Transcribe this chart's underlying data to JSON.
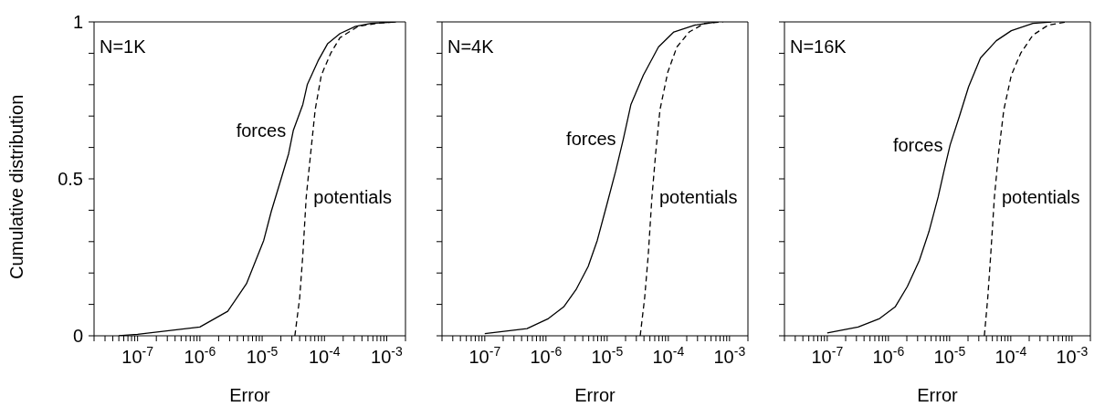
{
  "chart_data": [
    {
      "type": "line",
      "xlabel": "Error",
      "ylabel": "Cumulative distribution",
      "annotations": [
        "N=1K"
      ],
      "log": "x",
      "xlim": [
        2e-08,
        0.002
      ],
      "ylim": [
        0,
        1
      ],
      "xticks": [
        {
          "value": 2e-08,
          "label": null
        },
        {
          "value": 3e-08,
          "label": null
        },
        {
          "value": 4e-08,
          "label": null
        },
        {
          "value": 5e-08,
          "label": null
        },
        {
          "value": 6e-08,
          "label": null
        },
        {
          "value": 7e-08,
          "label": null
        },
        {
          "value": 8e-08,
          "label": null
        },
        {
          "value": 9e-08,
          "label": null
        },
        {
          "value": 1e-07,
          "label": "10$^{-7}$"
        },
        {
          "value": 2e-07,
          "label": null
        },
        {
          "value": 3e-07,
          "label": null
        },
        {
          "value": 4e-07,
          "label": null
        },
        {
          "value": 5e-07,
          "label": null
        },
        {
          "value": 6e-07,
          "label": null
        },
        {
          "value": 7e-07,
          "label": null
        },
        {
          "value": 8e-07,
          "label": null
        },
        {
          "value": 9e-07,
          "label": null
        },
        {
          "value": 1e-06,
          "label": "10$^{-6}$"
        },
        {
          "value": 2e-06,
          "label": null
        },
        {
          "value": 3e-06,
          "label": null
        },
        {
          "value": 4e-06,
          "label": null
        },
        {
          "value": 5e-06,
          "label": null
        },
        {
          "value": 6e-06,
          "label": null
        },
        {
          "value": 7e-06,
          "label": null
        },
        {
          "value": 8e-06,
          "label": null
        },
        {
          "value": 9e-06,
          "label": null
        },
        {
          "value": 1e-05,
          "label": "10$^{-5}$"
        },
        {
          "value": 2e-05,
          "label": null
        },
        {
          "value": 3e-05,
          "label": null
        },
        {
          "value": 4e-05,
          "label": null
        },
        {
          "value": 5e-05,
          "label": null
        },
        {
          "value": 6e-05,
          "label": null
        },
        {
          "value": 7e-05,
          "label": null
        },
        {
          "value": 8e-05,
          "label": null
        },
        {
          "value": 9e-05,
          "label": null
        },
        {
          "value": 0.0001,
          "label": "10$^{-4}$"
        },
        {
          "value": 0.0002,
          "label": null
        },
        {
          "value": 0.0003,
          "label": null
        },
        {
          "value": 0.0004,
          "label": null
        },
        {
          "value": 0.0005,
          "label": null
        },
        {
          "value": 0.0006,
          "label": null
        },
        {
          "value": 0.0007,
          "label": null
        },
        {
          "value": 0.0008,
          "label": null
        },
        {
          "value": 0.0009,
          "label": null
        },
        {
          "value": 0.001,
          "label": "10$^{-3}$"
        },
        {
          "value": 0.002,
          "label": null
        }
      ],
      "yticks": [
        0,
        {
          "value": 0.1,
          "label": null
        },
        {
          "value": 0.2,
          "label": null
        },
        {
          "value": 0.3,
          "label": null
        },
        {
          "value": 0.4,
          "label": null
        },
        0.5,
        {
          "value": 0.6,
          "label": null
        },
        {
          "value": 0.7,
          "label": null
        },
        {
          "value": 0.8,
          "label": null
        },
        {
          "value": 0.9,
          "label": null
        },
        1
      ],
      "series": [
        {
          "name": "forces",
          "color": "#000000",
          "line_style": "solid",
          "x": [
            5e-08,
            1e-07,
            1e-06,
            2.8e-06,
            5.6e-06,
            1.06e-05,
            1.4e-05,
            2e-05,
            2.66e-05,
            3.16e-05,
            4.5e-05,
            5.3e-05,
            7.9e-05,
            0.000112,
            0.000178,
            0.000316,
            0.00056,
            0.0014
          ],
          "values": [
            0,
            0.005,
            0.028,
            0.078,
            0.166,
            0.304,
            0.396,
            0.498,
            0.58,
            0.654,
            0.737,
            0.8,
            0.876,
            0.93,
            0.963,
            0.986,
            0.995,
            1
          ]
        },
        {
          "name": "potentials",
          "color": "#000000",
          "line_style": "dashed",
          "x": [
            3.35e-05,
            4e-05,
            4.5e-05,
            5.1e-05,
            6e-05,
            7.1e-05,
            8.9e-05,
            0.000126,
            0.000178,
            0.00035,
            0.00079,
            0.0014
          ],
          "values": [
            0,
            0.12,
            0.258,
            0.442,
            0.58,
            0.72,
            0.83,
            0.9,
            0.95,
            0.986,
            0.997,
            1
          ]
        }
      ]
    },
    {
      "type": "line",
      "xlabel": "Error",
      "annotations": [
        "N=4K"
      ],
      "log": "x",
      "xlim": [
        2e-08,
        0.002
      ],
      "ylim": [
        0,
        1
      ],
      "tick_labels": "x",
      "xticks": [
        {
          "value": 2e-08,
          "label": null
        },
        {
          "value": 3e-08,
          "label": null
        },
        {
          "value": 4e-08,
          "label": null
        },
        {
          "value": 5e-08,
          "label": null
        },
        {
          "value": 6e-08,
          "label": null
        },
        {
          "value": 7e-08,
          "label": null
        },
        {
          "value": 8e-08,
          "label": null
        },
        {
          "value": 9e-08,
          "label": null
        },
        {
          "value": 1e-07,
          "label": "10$^{-7}$"
        },
        {
          "value": 2e-07,
          "label": null
        },
        {
          "value": 3e-07,
          "label": null
        },
        {
          "value": 4e-07,
          "label": null
        },
        {
          "value": 5e-07,
          "label": null
        },
        {
          "value": 6e-07,
          "label": null
        },
        {
          "value": 7e-07,
          "label": null
        },
        {
          "value": 8e-07,
          "label": null
        },
        {
          "value": 9e-07,
          "label": null
        },
        {
          "value": 1e-06,
          "label": "10$^{-6}$"
        },
        {
          "value": 2e-06,
          "label": null
        },
        {
          "value": 3e-06,
          "label": null
        },
        {
          "value": 4e-06,
          "label": null
        },
        {
          "value": 5e-06,
          "label": null
        },
        {
          "value": 6e-06,
          "label": null
        },
        {
          "value": 7e-06,
          "label": null
        },
        {
          "value": 8e-06,
          "label": null
        },
        {
          "value": 9e-06,
          "label": null
        },
        {
          "value": 1e-05,
          "label": "10$^{-5}$"
        },
        {
          "value": 2e-05,
          "label": null
        },
        {
          "value": 3e-05,
          "label": null
        },
        {
          "value": 4e-05,
          "label": null
        },
        {
          "value": 5e-05,
          "label": null
        },
        {
          "value": 6e-05,
          "label": null
        },
        {
          "value": 7e-05,
          "label": null
        },
        {
          "value": 8e-05,
          "label": null
        },
        {
          "value": 9e-05,
          "label": null
        },
        {
          "value": 0.0001,
          "label": "10$^{-4}$"
        },
        {
          "value": 0.0002,
          "label": null
        },
        {
          "value": 0.0003,
          "label": null
        },
        {
          "value": 0.0004,
          "label": null
        },
        {
          "value": 0.0005,
          "label": null
        },
        {
          "value": 0.0006,
          "label": null
        },
        {
          "value": 0.0007,
          "label": null
        },
        {
          "value": 0.0008,
          "label": null
        },
        {
          "value": 0.0009,
          "label": null
        },
        {
          "value": 0.001,
          "label": "10$^{-3}$"
        },
        {
          "value": 0.002,
          "label": null
        }
      ],
      "yticks": [
        0,
        {
          "value": 0.1,
          "label": null
        },
        {
          "value": 0.2,
          "label": null
        },
        {
          "value": 0.3,
          "label": null
        },
        {
          "value": 0.4,
          "label": null
        },
        0.5,
        {
          "value": 0.6,
          "label": null
        },
        {
          "value": 0.7,
          "label": null
        },
        {
          "value": 0.8,
          "label": null
        },
        {
          "value": 0.9,
          "label": null
        },
        1
      ],
      "series": [
        {
          "name": "forces",
          "color": "#000000",
          "line_style": "solid",
          "x": [
            1e-07,
            4.9e-07,
            1.1e-06,
            1.95e-06,
            3.1e-06,
            4.9e-06,
            6.9e-06,
            9.8e-06,
            1.38e-05,
            1.84e-05,
            2.45e-05,
            3.9e-05,
            6.9e-05,
            0.000123,
            0.000275,
            0.00062
          ],
          "values": [
            0.007,
            0.023,
            0.055,
            0.092,
            0.147,
            0.221,
            0.304,
            0.415,
            0.525,
            0.627,
            0.737,
            0.83,
            0.92,
            0.968,
            0.99,
            1
          ]
        },
        {
          "name": "potentials",
          "color": "#000000",
          "line_style": "dashed",
          "x": [
            3.47e-05,
            4.1e-05,
            4.7e-05,
            5.4e-05,
            6.2e-05,
            7.3e-05,
            9.8e-05,
            0.000138,
            0.00022,
            0.00039,
            0.00078
          ],
          "values": [
            0,
            0.12,
            0.258,
            0.442,
            0.58,
            0.72,
            0.84,
            0.92,
            0.968,
            0.995,
            1
          ]
        }
      ]
    },
    {
      "type": "line",
      "xlabel": "Error",
      "annotations": [
        "N=16K"
      ],
      "log": "x",
      "xlim": [
        2e-08,
        0.002
      ],
      "ylim": [
        0,
        1
      ],
      "tick_labels": "x",
      "xticks": [
        {
          "value": 2e-08,
          "label": null
        },
        {
          "value": 3e-08,
          "label": null
        },
        {
          "value": 4e-08,
          "label": null
        },
        {
          "value": 5e-08,
          "label": null
        },
        {
          "value": 6e-08,
          "label": null
        },
        {
          "value": 7e-08,
          "label": null
        },
        {
          "value": 8e-08,
          "label": null
        },
        {
          "value": 9e-08,
          "label": null
        },
        {
          "value": 1e-07,
          "label": "10$^{-7}$"
        },
        {
          "value": 2e-07,
          "label": null
        },
        {
          "value": 3e-07,
          "label": null
        },
        {
          "value": 4e-07,
          "label": null
        },
        {
          "value": 5e-07,
          "label": null
        },
        {
          "value": 6e-07,
          "label": null
        },
        {
          "value": 7e-07,
          "label": null
        },
        {
          "value": 8e-07,
          "label": null
        },
        {
          "value": 9e-07,
          "label": null
        },
        {
          "value": 1e-06,
          "label": "10$^{-6}$"
        },
        {
          "value": 2e-06,
          "label": null
        },
        {
          "value": 3e-06,
          "label": null
        },
        {
          "value": 4e-06,
          "label": null
        },
        {
          "value": 5e-06,
          "label": null
        },
        {
          "value": 6e-06,
          "label": null
        },
        {
          "value": 7e-06,
          "label": null
        },
        {
          "value": 8e-06,
          "label": null
        },
        {
          "value": 9e-06,
          "label": null
        },
        {
          "value": 1e-05,
          "label": "10$^{-5}$"
        },
        {
          "value": 2e-05,
          "label": null
        },
        {
          "value": 3e-05,
          "label": null
        },
        {
          "value": 4e-05,
          "label": null
        },
        {
          "value": 5e-05,
          "label": null
        },
        {
          "value": 6e-05,
          "label": null
        },
        {
          "value": 7e-05,
          "label": null
        },
        {
          "value": 8e-05,
          "label": null
        },
        {
          "value": 9e-05,
          "label": null
        },
        {
          "value": 0.0001,
          "label": "10$^{-4}$"
        },
        {
          "value": 0.0002,
          "label": null
        },
        {
          "value": 0.0003,
          "label": null
        },
        {
          "value": 0.0004,
          "label": null
        },
        {
          "value": 0.0005,
          "label": null
        },
        {
          "value": 0.0006,
          "label": null
        },
        {
          "value": 0.0007,
          "label": null
        },
        {
          "value": 0.0008,
          "label": null
        },
        {
          "value": 0.0009,
          "label": null
        },
        {
          "value": 0.001,
          "label": "10$^{-3}$"
        },
        {
          "value": 0.002,
          "label": null
        }
      ],
      "yticks": [
        0,
        {
          "value": 0.1,
          "label": null
        },
        {
          "value": 0.2,
          "label": null
        },
        {
          "value": 0.3,
          "label": null
        },
        {
          "value": 0.4,
          "label": null
        },
        0.5,
        {
          "value": 0.6,
          "label": null
        },
        {
          "value": 0.7,
          "label": null
        },
        {
          "value": 0.8,
          "label": null
        },
        {
          "value": 0.9,
          "label": null
        },
        1
      ],
      "series": [
        {
          "name": "forces",
          "color": "#000000",
          "line_style": "solid",
          "x": [
            1e-07,
            3.2e-07,
            7.2e-07,
            1.29e-06,
            2.04e-06,
            3.2e-06,
            4.6e-06,
            6.5e-06,
            8.1e-06,
            1.02e-05,
            1.45e-05,
            2.04e-05,
            3.2e-05,
            5.8e-05,
            0.000102,
            0.00023,
            0.00046
          ],
          "values": [
            0.009,
            0.028,
            0.055,
            0.092,
            0.157,
            0.24,
            0.332,
            0.442,
            0.525,
            0.608,
            0.7,
            0.793,
            0.885,
            0.94,
            0.972,
            0.995,
            1
          ]
        },
        {
          "name": "potentials",
          "color": "#000000",
          "line_style": "dashed",
          "x": [
            3.7e-05,
            4.2e-05,
            4.7e-05,
            5.4e-05,
            6.3e-05,
            7.7e-05,
            0.000102,
            0.000145,
            0.00023,
            0.00041,
            0.00081
          ],
          "values": [
            0,
            0.12,
            0.258,
            0.442,
            0.58,
            0.72,
            0.83,
            0.9,
            0.958,
            0.99,
            1
          ]
        }
      ]
    }
  ]
}
